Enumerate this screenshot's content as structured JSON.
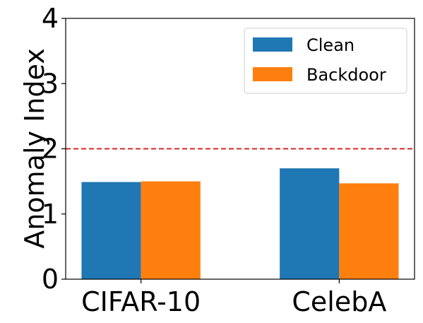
{
  "chart_data": {
    "type": "bar",
    "categories": [
      "CIFAR-10",
      "CelebA"
    ],
    "series": [
      {
        "name": "Clean",
        "values": [
          1.49,
          1.7
        ],
        "color": "#1f77b4"
      },
      {
        "name": "Backdoor",
        "values": [
          1.5,
          1.47
        ],
        "color": "#ff7f0e"
      }
    ],
    "ylabel": "Anomaly Index",
    "ylim": [
      0,
      4
    ],
    "yticks": [
      "0",
      "1",
      "2",
      "3",
      "4"
    ],
    "threshold": {
      "value": 2,
      "color": "#d62728",
      "style": "dashed"
    },
    "legend_position": "top-right",
    "grid": false
  }
}
